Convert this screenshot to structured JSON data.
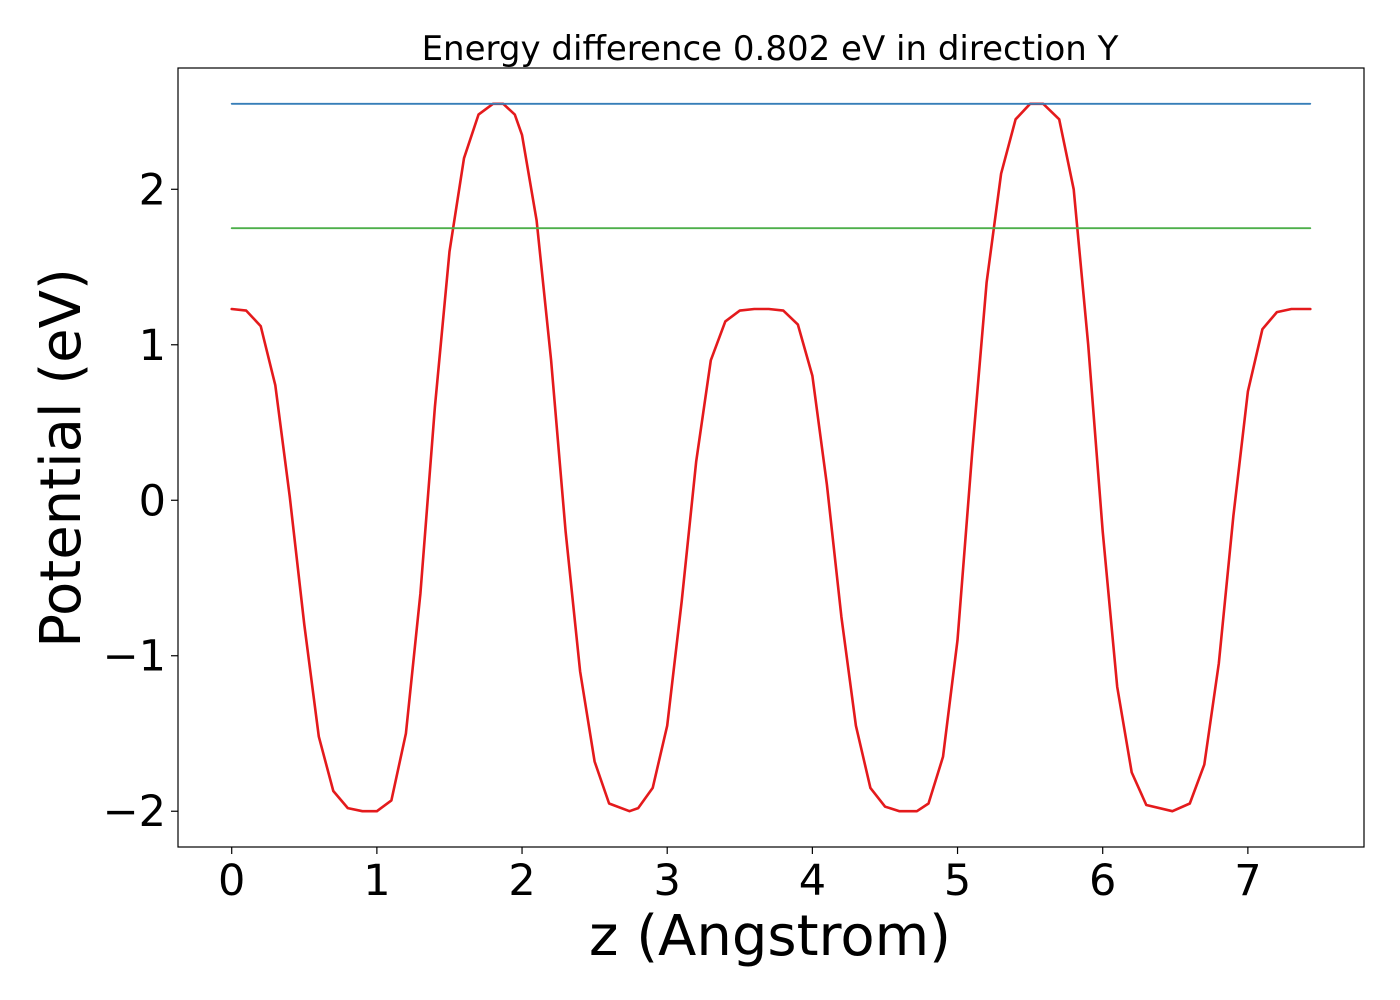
{
  "chart_data": {
    "type": "line",
    "title": "Energy difference 0.802 eV in direction Y",
    "xlabel": "z (Angstrom)",
    "ylabel": "Potential (eV)",
    "xlim": [
      -0.37,
      7.8
    ],
    "ylim": [
      -2.23,
      2.78
    ],
    "x_ticks": [
      0,
      1,
      2,
      3,
      4,
      5,
      6,
      7
    ],
    "x_tick_labels": [
      "0",
      "1",
      "2",
      "3",
      "4",
      "5",
      "6",
      "7"
    ],
    "y_ticks": [
      -2,
      -1,
      0,
      1,
      2
    ],
    "y_tick_labels": [
      "−2",
      "−1",
      "0",
      "1",
      "2"
    ],
    "grid": false,
    "legend": "none",
    "series": [
      {
        "kind": "curve",
        "color": "#e41a1c",
        "x": [
          0,
          0.1,
          0.2,
          0.3,
          0.4,
          0.5,
          0.6,
          0.7,
          0.8,
          0.9,
          1.0,
          1.1,
          1.2,
          1.3,
          1.4,
          1.5,
          1.6,
          1.7,
          1.8,
          1.87,
          1.95,
          2.0,
          2.1,
          2.2,
          2.3,
          2.4,
          2.5,
          2.6,
          2.74,
          2.8,
          2.9,
          3.0,
          3.1,
          3.2,
          3.3,
          3.4,
          3.5,
          3.6,
          3.7,
          3.8,
          3.9,
          4.0,
          4.1,
          4.2,
          4.3,
          4.4,
          4.5,
          4.6,
          4.72,
          4.8,
          4.9,
          5.0,
          5.1,
          5.2,
          5.3,
          5.4,
          5.5,
          5.59,
          5.7,
          5.8,
          5.9,
          6.0,
          6.1,
          6.2,
          6.3,
          6.48,
          6.6,
          6.7,
          6.8,
          6.9,
          7.0,
          7.1,
          7.2,
          7.3,
          7.43
        ],
        "y": [
          1.23,
          1.22,
          1.12,
          0.74,
          0.02,
          -0.8,
          -1.52,
          -1.87,
          -1.98,
          -2.0,
          -2.0,
          -1.93,
          -1.5,
          -0.6,
          0.6,
          1.6,
          2.2,
          2.48,
          2.55,
          2.55,
          2.48,
          2.35,
          1.8,
          0.9,
          -0.2,
          -1.1,
          -1.68,
          -1.95,
          -2.0,
          -1.98,
          -1.85,
          -1.45,
          -0.65,
          0.25,
          0.9,
          1.15,
          1.22,
          1.23,
          1.23,
          1.22,
          1.13,
          0.8,
          0.1,
          -0.75,
          -1.45,
          -1.85,
          -1.97,
          -2.0,
          -2.0,
          -1.95,
          -1.65,
          -0.9,
          0.3,
          1.4,
          2.1,
          2.45,
          2.55,
          2.55,
          2.45,
          2.0,
          1.0,
          -0.2,
          -1.2,
          -1.75,
          -1.96,
          -2.0,
          -1.95,
          -1.7,
          -1.05,
          -0.1,
          0.7,
          1.1,
          1.21,
          1.23,
          1.23
        ]
      },
      {
        "kind": "hline",
        "color": "#377eb8",
        "x": [
          0,
          7.43
        ],
        "y": [
          2.55,
          2.55
        ]
      },
      {
        "kind": "hline",
        "color": "#4daf4a",
        "x": [
          0,
          7.43
        ],
        "y": [
          1.75,
          1.75
        ]
      }
    ]
  }
}
